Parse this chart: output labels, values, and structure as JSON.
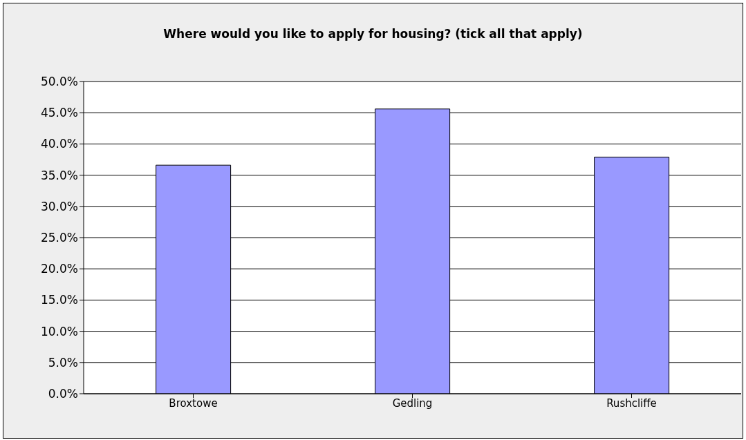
{
  "chart_data": {
    "type": "bar",
    "title": "Where would you like to apply for housing? (tick all that apply)",
    "categories": [
      "Broxtowe",
      "Gedling",
      "Rushcliffe"
    ],
    "values": [
      36.6,
      45.6,
      37.9
    ],
    "color": "#9999ff",
    "ylim": [
      0,
      50
    ],
    "yticks": [
      {
        "value": 0,
        "label": "0.0%"
      },
      {
        "value": 5,
        "label": "5.0%"
      },
      {
        "value": 10,
        "label": "10.0%"
      },
      {
        "value": 15,
        "label": "15.0%"
      },
      {
        "value": 20,
        "label": "20.0%"
      },
      {
        "value": 25,
        "label": "25.0%"
      },
      {
        "value": 30,
        "label": "30.0%"
      },
      {
        "value": 35,
        "label": "35.0%"
      },
      {
        "value": 40,
        "label": "40.0%"
      },
      {
        "value": 45,
        "label": "45.0%"
      },
      {
        "value": 50,
        "label": "50.0%"
      }
    ],
    "grid": "y",
    "legend": false
  }
}
